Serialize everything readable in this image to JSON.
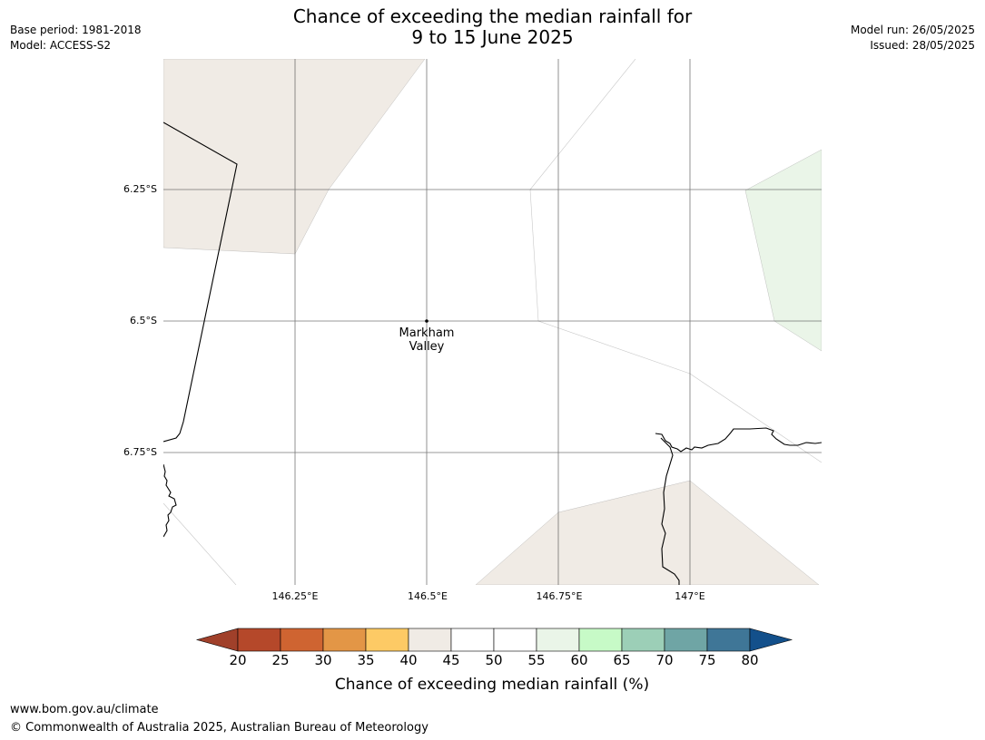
{
  "header": {
    "base_period": "Base period: 1981-2018",
    "model": "Model: ACCESS-S2",
    "title_line1": "Chance of exceeding the median rainfall for",
    "title_line2": "9 to 15 June 2025",
    "model_run": "Model run: 26/05/2025",
    "issued": "Issued: 28/05/2025"
  },
  "map": {
    "latitude_labels": [
      "6.25°S",
      "6.5°S",
      "6.75°S"
    ],
    "longitude_labels": [
      "146.25°E",
      "146.5°E",
      "146.75°E",
      "147°E"
    ],
    "place": {
      "line1": "Markham",
      "line2": "Valley"
    },
    "region_colors": {
      "35-40": "#fdca65",
      "40-45": "#f0ebe5",
      "55-60": "#eaf5e8"
    }
  },
  "colorbar": {
    "tick_labels": [
      "20",
      "25",
      "30",
      "35",
      "40",
      "45",
      "50",
      "55",
      "60",
      "65",
      "70",
      "75",
      "80"
    ],
    "colors": [
      "#a0402a",
      "#b5482a",
      "#cf6431",
      "#e39646",
      "#fdca65",
      "#f0ebe5",
      "#ffffff",
      "#ffffff",
      "#eaf5e8",
      "#c7fac7",
      "#9ccfb7",
      "#6fa5a5",
      "#3f7697",
      "#13508b"
    ],
    "label": "Chance of exceeding median rainfall (%)"
  },
  "footer": {
    "website": "www.bom.gov.au/climate",
    "copyright": "© Commonwealth of Australia 2025, Australian Bureau of Meteorology"
  }
}
